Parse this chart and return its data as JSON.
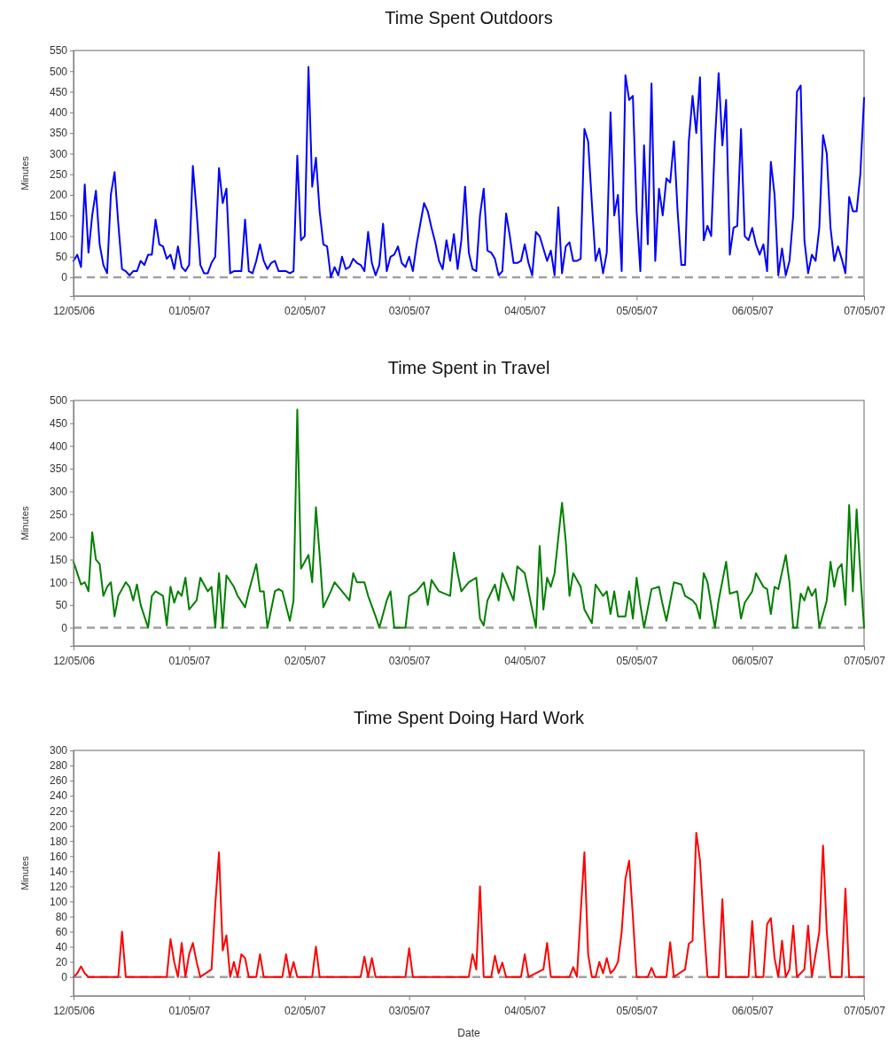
{
  "chart_data": [
    {
      "type": "line",
      "title": "Time Spent Outdoors",
      "ylabel": "Minutes",
      "xlim": [
        "2006-12-05",
        "2007-07-05"
      ],
      "xticks": [
        {
          "value": "2006-12-05",
          "label": "12/05/06"
        },
        {
          "value": "2007-01-05",
          "label": "01/05/07"
        },
        {
          "value": "2007-02-05",
          "label": "02/05/07"
        },
        {
          "value": "2007-03-05",
          "label": "03/05/07"
        },
        {
          "value": "2007-04-05",
          "label": "04/05/07"
        },
        {
          "value": "2007-05-05",
          "label": "05/05/07"
        },
        {
          "value": "2007-06-05",
          "label": "06/05/07"
        },
        {
          "value": "2007-07-05",
          "label": "07/05/07"
        }
      ],
      "ylim": [
        -45,
        550
      ],
      "yticks": [
        0,
        50,
        100,
        150,
        200,
        250,
        300,
        350,
        400,
        450,
        500,
        550
      ],
      "ref_lines": [
        {
          "axis": "y",
          "value": 0,
          "color": "#a0a0a0",
          "line_style": "dashed"
        }
      ],
      "series": [
        {
          "color": "#0000ff",
          "x": [
            "2006-12-05",
            "2006-12-06",
            "2006-12-07",
            "2006-12-08",
            "2006-12-09",
            "2006-12-10",
            "2006-12-11",
            "2006-12-12",
            "2006-12-13",
            "2006-12-14",
            "2006-12-15",
            "2006-12-16",
            "2006-12-17",
            "2006-12-18",
            "2006-12-19",
            "2006-12-20",
            "2006-12-21",
            "2006-12-22",
            "2006-12-23",
            "2006-12-24",
            "2006-12-25",
            "2006-12-26",
            "2006-12-27",
            "2006-12-28",
            "2006-12-29",
            "2006-12-30",
            "2006-12-31",
            "2007-01-01",
            "2007-01-02",
            "2007-01-03",
            "2007-01-04",
            "2007-01-05",
            "2007-01-06",
            "2007-01-07",
            "2007-01-08",
            "2007-01-09",
            "2007-01-10",
            "2007-01-11",
            "2007-01-12",
            "2007-01-13",
            "2007-01-14",
            "2007-01-15",
            "2007-01-16",
            "2007-01-17",
            "2007-01-18",
            "2007-01-19",
            "2007-01-20",
            "2007-01-21",
            "2007-01-22",
            "2007-01-23",
            "2007-01-24",
            "2007-01-25",
            "2007-01-26",
            "2007-01-27",
            "2007-01-28",
            "2007-01-29",
            "2007-01-30",
            "2007-01-31",
            "2007-02-01",
            "2007-02-02",
            "2007-02-03",
            "2007-02-04",
            "2007-02-05",
            "2007-02-06",
            "2007-02-07",
            "2007-02-08",
            "2007-02-09",
            "2007-02-10",
            "2007-02-11",
            "2007-02-12",
            "2007-02-13",
            "2007-02-14",
            "2007-02-15",
            "2007-02-16",
            "2007-02-17",
            "2007-02-18",
            "2007-02-19",
            "2007-02-20",
            "2007-02-21",
            "2007-02-22",
            "2007-02-23",
            "2007-02-24",
            "2007-02-25",
            "2007-02-26",
            "2007-02-27",
            "2007-02-28",
            "2007-03-01",
            "2007-03-02",
            "2007-03-03",
            "2007-03-04",
            "2007-03-05",
            "2007-03-06",
            "2007-03-07",
            "2007-03-08",
            "2007-03-09",
            "2007-03-10",
            "2007-03-11",
            "2007-03-12",
            "2007-03-13",
            "2007-03-14",
            "2007-03-15",
            "2007-03-16",
            "2007-03-17",
            "2007-03-18",
            "2007-03-19",
            "2007-03-20",
            "2007-03-21",
            "2007-03-22",
            "2007-03-23",
            "2007-03-24",
            "2007-03-25",
            "2007-03-26",
            "2007-03-27",
            "2007-03-28",
            "2007-03-29",
            "2007-03-30",
            "2007-03-31",
            "2007-04-01",
            "2007-04-02",
            "2007-04-03",
            "2007-04-04",
            "2007-04-05",
            "2007-04-06",
            "2007-04-07",
            "2007-04-08",
            "2007-04-09",
            "2007-04-10",
            "2007-04-11",
            "2007-04-12",
            "2007-04-13",
            "2007-04-14",
            "2007-04-15",
            "2007-04-16",
            "2007-04-17",
            "2007-04-18",
            "2007-04-19",
            "2007-04-20",
            "2007-04-21",
            "2007-04-22",
            "2007-04-23",
            "2007-04-24",
            "2007-04-25",
            "2007-04-26",
            "2007-04-27",
            "2007-04-28",
            "2007-04-29",
            "2007-04-30",
            "2007-05-01",
            "2007-05-02",
            "2007-05-03",
            "2007-05-04",
            "2007-05-05",
            "2007-05-06",
            "2007-05-07",
            "2007-05-08",
            "2007-05-09",
            "2007-05-10",
            "2007-05-11",
            "2007-05-12",
            "2007-05-13",
            "2007-05-14",
            "2007-05-15",
            "2007-05-16",
            "2007-05-17",
            "2007-05-18",
            "2007-05-19",
            "2007-05-20",
            "2007-05-21",
            "2007-05-22",
            "2007-05-23",
            "2007-05-24",
            "2007-05-25",
            "2007-05-26",
            "2007-05-27",
            "2007-05-28",
            "2007-05-29",
            "2007-05-30",
            "2007-05-31",
            "2007-06-01",
            "2007-06-02",
            "2007-06-03",
            "2007-06-04",
            "2007-06-05",
            "2007-06-06",
            "2007-06-07",
            "2007-06-08",
            "2007-06-09",
            "2007-06-10",
            "2007-06-11",
            "2007-06-12",
            "2007-06-13",
            "2007-06-14",
            "2007-06-15",
            "2007-06-16",
            "2007-06-17",
            "2007-06-18",
            "2007-06-19",
            "2007-06-20",
            "2007-06-21",
            "2007-06-22",
            "2007-06-23",
            "2007-06-24",
            "2007-06-25",
            "2007-06-26",
            "2007-06-27",
            "2007-06-28",
            "2007-06-29",
            "2007-06-30",
            "2007-07-01",
            "2007-07-02",
            "2007-07-03",
            "2007-07-04",
            "2007-07-05"
          ],
          "values": [
            40,
            55,
            25,
            225,
            60,
            150,
            210,
            80,
            30,
            10,
            200,
            255,
            130,
            20,
            15,
            5,
            15,
            15,
            40,
            30,
            55,
            55,
            140,
            80,
            75,
            45,
            55,
            20,
            75,
            25,
            15,
            30,
            270,
            160,
            30,
            10,
            10,
            35,
            50,
            265,
            180,
            215,
            10,
            15,
            15,
            15,
            140,
            15,
            10,
            40,
            80,
            40,
            20,
            35,
            40,
            15,
            15,
            15,
            10,
            15,
            295,
            90,
            100,
            510,
            220,
            290,
            160,
            80,
            75,
            0,
            25,
            5,
            50,
            20,
            25,
            45,
            35,
            30,
            15,
            110,
            35,
            5,
            30,
            130,
            15,
            50,
            55,
            75,
            35,
            25,
            50,
            15,
            80,
            130,
            180,
            160,
            120,
            85,
            40,
            20,
            90,
            40,
            105,
            20,
            90,
            220,
            60,
            20,
            15,
            150,
            215,
            65,
            60,
            45,
            5,
            15,
            155,
            100,
            35,
            35,
            40,
            80,
            35,
            5,
            110,
            100,
            70,
            40,
            65,
            5,
            170,
            10,
            75,
            85,
            40,
            40,
            45,
            360,
            330,
            180,
            40,
            70,
            10,
            60,
            400,
            150,
            200,
            15,
            490,
            430,
            440,
            160,
            15,
            320,
            80,
            470,
            40,
            215,
            150,
            240,
            230,
            330,
            160,
            30,
            30,
            330,
            440,
            350,
            485,
            90,
            125,
            100,
            330,
            495,
            320,
            430,
            55,
            120,
            125,
            360,
            100,
            90,
            120,
            80,
            55,
            80,
            15,
            280,
            200,
            5,
            70,
            5,
            40,
            150,
            450,
            465,
            90,
            10,
            55,
            40,
            120,
            345,
            300,
            120,
            40,
            75,
            45,
            10,
            195,
            160,
            160,
            250,
            435
          ]
        }
      ]
    },
    {
      "type": "line",
      "title": "Time Spent in Travel",
      "ylabel": "Minutes",
      "xlim": [
        "2006-12-05",
        "2007-07-05"
      ],
      "xticks": [
        {
          "value": "2006-12-05",
          "label": "12/05/06"
        },
        {
          "value": "2007-01-05",
          "label": "01/05/07"
        },
        {
          "value": "2007-02-05",
          "label": "02/05/07"
        },
        {
          "value": "2007-03-05",
          "label": "03/05/07"
        },
        {
          "value": "2007-04-05",
          "label": "04/05/07"
        },
        {
          "value": "2007-05-05",
          "label": "05/05/07"
        },
        {
          "value": "2007-06-05",
          "label": "06/05/07"
        },
        {
          "value": "2007-07-05",
          "label": "07/05/07"
        }
      ],
      "ylim": [
        -40,
        500
      ],
      "yticks": [
        0,
        50,
        100,
        150,
        200,
        250,
        300,
        350,
        400,
        450,
        500
      ],
      "ref_lines": [
        {
          "axis": "y",
          "value": 0,
          "color": "#a0a0a0",
          "line_style": "dashed"
        }
      ],
      "series": [
        {
          "color": "#008000",
          "x": [
            "2006-12-05",
            "2006-12-06",
            "2006-12-07",
            "2006-12-08",
            "2006-12-09",
            "2006-12-10",
            "2006-12-11",
            "2006-12-12",
            "2006-12-13",
            "2006-12-14",
            "2006-12-15",
            "2006-12-16",
            "2006-12-17",
            "2006-12-18",
            "2006-12-19",
            "2006-12-20",
            "2006-12-21",
            "2006-12-22",
            "2006-12-23",
            "2006-12-25",
            "2006-12-26",
            "2006-12-27",
            "2006-12-29",
            "2006-12-30",
            "2006-12-31",
            "2007-01-01",
            "2007-01-02",
            "2007-01-03",
            "2007-01-04",
            "2007-01-05",
            "2007-01-07",
            "2007-01-08",
            "2007-01-10",
            "2007-01-11",
            "2007-01-12",
            "2007-01-13",
            "2007-01-14",
            "2007-01-15",
            "2007-01-17",
            "2007-01-18",
            "2007-01-20",
            "2007-01-21",
            "2007-01-23",
            "2007-01-24",
            "2007-01-25",
            "2007-01-26",
            "2007-01-28",
            "2007-01-29",
            "2007-01-30",
            "2007-02-01",
            "2007-02-02",
            "2007-02-03",
            "2007-02-04",
            "2007-02-06",
            "2007-02-07",
            "2007-02-08",
            "2007-02-09",
            "2007-02-10",
            "2007-02-12",
            "2007-02-13",
            "2007-02-15",
            "2007-02-17",
            "2007-02-18",
            "2007-02-19",
            "2007-02-21",
            "2007-02-22",
            "2007-02-24",
            "2007-02-25",
            "2007-02-27",
            "2007-02-28",
            "2007-03-01",
            "2007-03-04",
            "2007-03-05",
            "2007-03-07",
            "2007-03-09",
            "2007-03-10",
            "2007-03-11",
            "2007-03-13",
            "2007-03-16",
            "2007-03-17",
            "2007-03-18",
            "2007-03-19",
            "2007-03-21",
            "2007-03-23",
            "2007-03-24",
            "2007-03-25",
            "2007-03-26",
            "2007-03-28",
            "2007-03-29",
            "2007-03-30",
            "2007-04-01",
            "2007-04-02",
            "2007-04-03",
            "2007-04-05",
            "2007-04-06",
            "2007-04-08",
            "2007-04-09",
            "2007-04-10",
            "2007-04-11",
            "2007-04-12",
            "2007-04-13",
            "2007-04-15",
            "2007-04-16",
            "2007-04-17",
            "2007-04-18",
            "2007-04-20",
            "2007-04-21",
            "2007-04-23",
            "2007-04-24",
            "2007-04-26",
            "2007-04-27",
            "2007-04-28",
            "2007-04-29",
            "2007-04-30",
            "2007-05-02",
            "2007-05-03",
            "2007-05-04",
            "2007-05-05",
            "2007-05-06",
            "2007-05-07",
            "2007-05-09",
            "2007-05-11",
            "2007-05-12",
            "2007-05-13",
            "2007-05-15",
            "2007-05-17",
            "2007-05-18",
            "2007-05-20",
            "2007-05-21",
            "2007-05-22",
            "2007-05-23",
            "2007-05-24",
            "2007-05-26",
            "2007-05-27",
            "2007-05-29",
            "2007-05-30",
            "2007-06-01",
            "2007-06-02",
            "2007-06-03",
            "2007-06-05",
            "2007-06-06",
            "2007-06-08",
            "2007-06-09",
            "2007-06-10",
            "2007-06-11",
            "2007-06-12",
            "2007-06-14",
            "2007-06-15",
            "2007-06-16",
            "2007-06-17",
            "2007-06-18",
            "2007-06-19",
            "2007-06-20",
            "2007-06-21",
            "2007-06-22",
            "2007-06-23",
            "2007-06-25",
            "2007-06-26",
            "2007-06-27",
            "2007-06-28",
            "2007-06-29",
            "2007-06-30",
            "2007-07-01",
            "2007-07-02",
            "2007-07-03",
            "2007-07-04",
            "2007-07-05"
          ],
          "values": [
            145,
            120,
            95,
            100,
            80,
            210,
            150,
            140,
            70,
            90,
            100,
            25,
            70,
            85,
            100,
            90,
            60,
            95,
            50,
            0,
            70,
            80,
            70,
            5,
            90,
            55,
            80,
            70,
            110,
            40,
            60,
            110,
            80,
            90,
            0,
            120,
            0,
            115,
            90,
            70,
            45,
            80,
            140,
            80,
            80,
            0,
            80,
            85,
            80,
            15,
            60,
            480,
            130,
            160,
            100,
            265,
            160,
            45,
            80,
            100,
            80,
            60,
            120,
            100,
            100,
            70,
            25,
            0,
            60,
            80,
            0,
            0,
            70,
            80,
            100,
            50,
            105,
            80,
            70,
            165,
            120,
            80,
            100,
            110,
            20,
            5,
            60,
            95,
            60,
            120,
            80,
            60,
            135,
            120,
            80,
            0,
            180,
            40,
            110,
            90,
            120,
            275,
            190,
            70,
            120,
            90,
            40,
            10,
            95,
            70,
            80,
            30,
            80,
            25,
            25,
            80,
            20,
            110,
            50,
            0,
            85,
            90,
            50,
            15,
            100,
            95,
            70,
            60,
            50,
            20,
            120,
            100,
            0,
            60,
            145,
            75,
            80,
            20,
            55,
            80,
            120,
            90,
            85,
            30,
            90,
            85,
            160,
            100,
            0,
            0,
            75,
            60,
            90,
            70,
            85,
            0,
            60,
            145,
            90,
            130,
            140,
            50,
            270,
            80,
            260,
            120,
            0
          ]
        }
      ]
    },
    {
      "type": "line",
      "title": "Time Spent Doing Hard Work",
      "ylabel": "Minutes",
      "xlabel": "Date",
      "xlim": [
        "2006-12-05",
        "2007-07-05"
      ],
      "xticks": [
        {
          "value": "2006-12-05",
          "label": "12/05/06"
        },
        {
          "value": "2007-01-05",
          "label": "01/05/07"
        },
        {
          "value": "2007-02-05",
          "label": "02/05/07"
        },
        {
          "value": "2007-03-05",
          "label": "03/05/07"
        },
        {
          "value": "2007-04-05",
          "label": "04/05/07"
        },
        {
          "value": "2007-05-05",
          "label": "05/05/07"
        },
        {
          "value": "2007-06-05",
          "label": "06/05/07"
        },
        {
          "value": "2007-07-05",
          "label": "07/05/07"
        }
      ],
      "ylim": [
        -25,
        300
      ],
      "yticks": [
        0,
        20,
        40,
        60,
        80,
        100,
        120,
        140,
        160,
        180,
        200,
        220,
        240,
        260,
        280,
        300
      ],
      "ref_lines": [
        {
          "axis": "y",
          "value": 0,
          "color": "#a0a0a0",
          "line_style": "dashed"
        }
      ],
      "series": [
        {
          "color": "#ff0000",
          "x": [
            "2006-12-05",
            "2006-12-06",
            "2006-12-07",
            "2006-12-08",
            "2006-12-09",
            "2006-12-17",
            "2006-12-18",
            "2006-12-19",
            "2006-12-30",
            "2006-12-31",
            "2007-01-01",
            "2007-01-02",
            "2007-01-03",
            "2007-01-04",
            "2007-01-05",
            "2007-01-06",
            "2007-01-07",
            "2007-01-08",
            "2007-01-11",
            "2007-01-12",
            "2007-01-13",
            "2007-01-14",
            "2007-01-15",
            "2007-01-16",
            "2007-01-17",
            "2007-01-18",
            "2007-01-19",
            "2007-01-20",
            "2007-01-21",
            "2007-01-23",
            "2007-01-24",
            "2007-01-25",
            "2007-01-30",
            "2007-01-31",
            "2007-02-01",
            "2007-02-02",
            "2007-02-03",
            "2007-02-07",
            "2007-02-08",
            "2007-02-09",
            "2007-02-20",
            "2007-02-21",
            "2007-02-22",
            "2007-02-23",
            "2007-02-24",
            "2007-03-04",
            "2007-03-05",
            "2007-03-06",
            "2007-03-21",
            "2007-03-22",
            "2007-03-23",
            "2007-03-24",
            "2007-03-25",
            "2007-03-27",
            "2007-03-28",
            "2007-03-29",
            "2007-03-30",
            "2007-03-31",
            "2007-04-04",
            "2007-04-05",
            "2007-04-06",
            "2007-04-10",
            "2007-04-11",
            "2007-04-12",
            "2007-04-17",
            "2007-04-18",
            "2007-04-19",
            "2007-04-20",
            "2007-04-21",
            "2007-04-22",
            "2007-04-23",
            "2007-04-24",
            "2007-04-25",
            "2007-04-26",
            "2007-04-27",
            "2007-04-28",
            "2007-04-29",
            "2007-04-30",
            "2007-05-01",
            "2007-05-02",
            "2007-05-03",
            "2007-05-04",
            "2007-05-05",
            "2007-05-08",
            "2007-05-09",
            "2007-05-10",
            "2007-05-13",
            "2007-05-14",
            "2007-05-15",
            "2007-05-18",
            "2007-05-19",
            "2007-05-20",
            "2007-05-21",
            "2007-05-22",
            "2007-05-23",
            "2007-05-24",
            "2007-05-27",
            "2007-05-28",
            "2007-05-29",
            "2007-06-04",
            "2007-06-05",
            "2007-06-06",
            "2007-06-08",
            "2007-06-09",
            "2007-06-10",
            "2007-06-11",
            "2007-06-12",
            "2007-06-13",
            "2007-06-14",
            "2007-06-15",
            "2007-06-16",
            "2007-06-17",
            "2007-06-19",
            "2007-06-20",
            "2007-06-21",
            "2007-06-23",
            "2007-06-24",
            "2007-06-25",
            "2007-06-26",
            "2007-06-29",
            "2007-06-30",
            "2007-07-01",
            "2007-07-05"
          ],
          "values": [
            0,
            5,
            14,
            5,
            0,
            0,
            60,
            0,
            0,
            50,
            20,
            0,
            45,
            0,
            30,
            45,
            20,
            0,
            10,
            95,
            165,
            35,
            55,
            0,
            20,
            0,
            30,
            25,
            0,
            0,
            30,
            0,
            0,
            30,
            0,
            20,
            0,
            0,
            40,
            0,
            0,
            27,
            0,
            25,
            0,
            0,
            38,
            0,
            0,
            30,
            10,
            120,
            0,
            0,
            28,
            5,
            19,
            0,
            0,
            30,
            0,
            10,
            45,
            0,
            0,
            13,
            0,
            85,
            165,
            30,
            0,
            0,
            20,
            5,
            25,
            5,
            10,
            20,
            60,
            130,
            154,
            80,
            0,
            0,
            12,
            0,
            0,
            46,
            0,
            10,
            44,
            48,
            191,
            154,
            72,
            0,
            0,
            103,
            0,
            0,
            74,
            0,
            0,
            70,
            78,
            25,
            0,
            48,
            0,
            10,
            68,
            0,
            10,
            68,
            0,
            60,
            174,
            60,
            0,
            0,
            117,
            0,
            0
          ]
        }
      ]
    }
  ]
}
